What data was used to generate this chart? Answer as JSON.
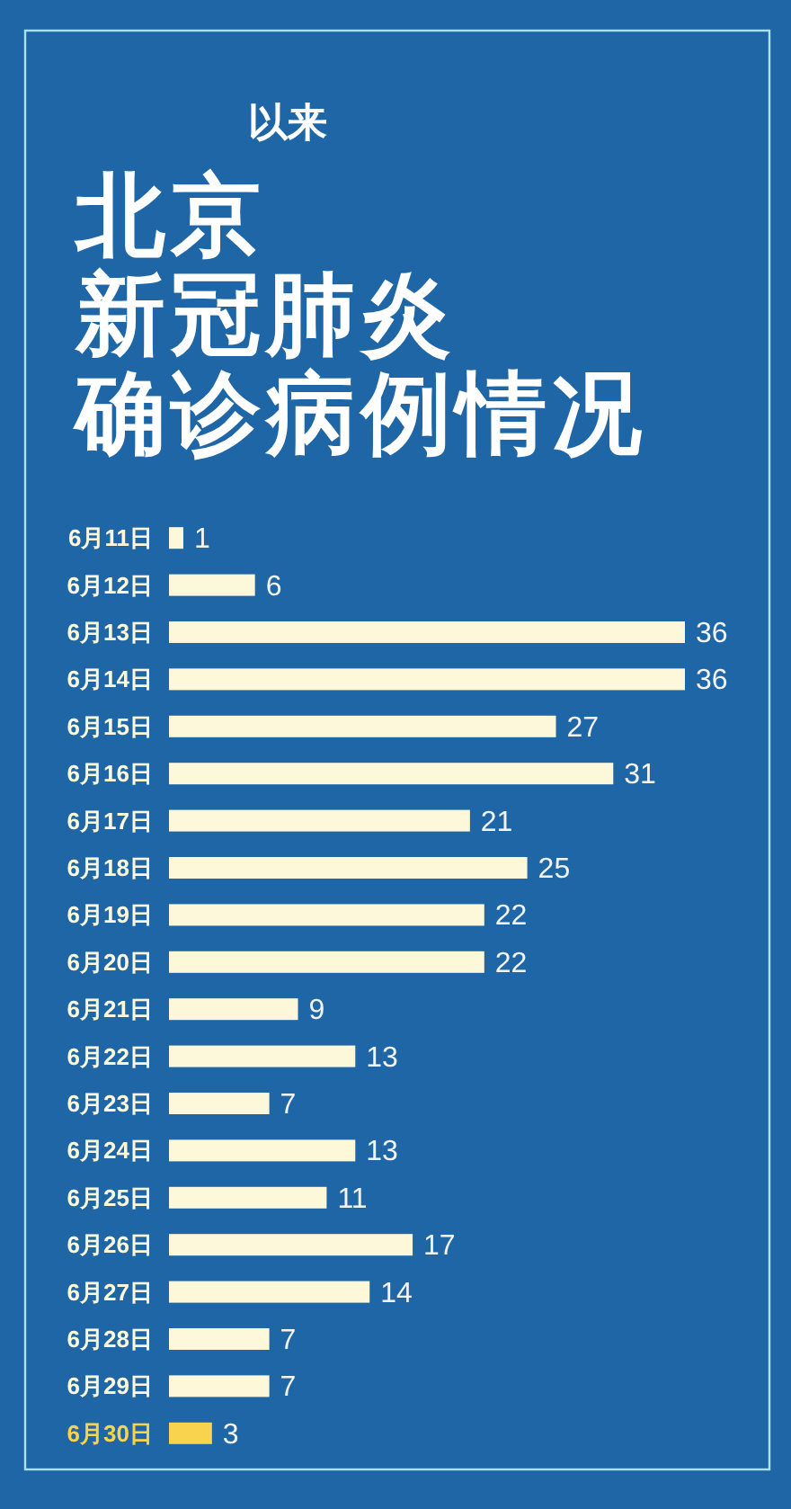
{
  "chart_data": {
    "type": "bar",
    "orientation": "horizontal",
    "title": "北京新冠肺炎确诊病例情况",
    "subtitle": "以来",
    "categories": [
      "6月11日",
      "6月12日",
      "6月13日",
      "6月14日",
      "6月15日",
      "6月16日",
      "6月17日",
      "6月18日",
      "6月19日",
      "6月20日",
      "6月21日",
      "6月22日",
      "6月23日",
      "6月24日",
      "6月25日",
      "6月26日",
      "6月27日",
      "6月28日",
      "6月29日",
      "6月30日"
    ],
    "values": [
      1,
      6,
      36,
      36,
      27,
      31,
      21,
      25,
      22,
      22,
      9,
      13,
      7,
      13,
      11,
      17,
      14,
      7,
      7,
      3
    ],
    "colors": [
      "#fdf8d9",
      "#fdf8d9",
      "#fdf8d9",
      "#fdf8d9",
      "#fdf8d9",
      "#fdf8d9",
      "#fdf8d9",
      "#fdf8d9",
      "#fdf8d9",
      "#fdf8d9",
      "#fdf8d9",
      "#fdf8d9",
      "#fdf8d9",
      "#fdf8d9",
      "#fdf8d9",
      "#fdf8d9",
      "#fdf8d9",
      "#fdf8d9",
      "#fdf8d9",
      "#f9d34e"
    ],
    "data_labels": true,
    "tick_labels": "y"
  }
}
